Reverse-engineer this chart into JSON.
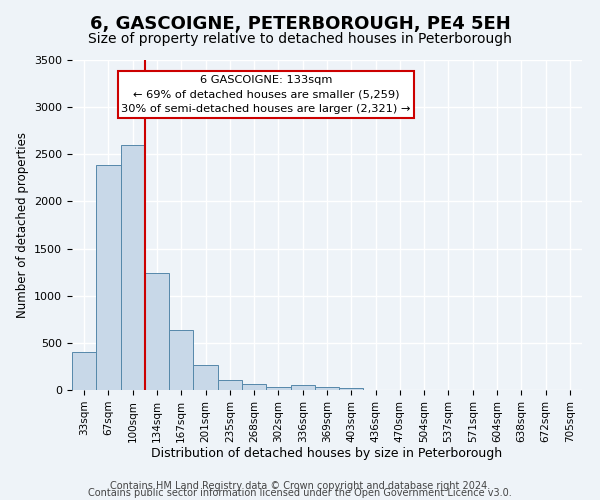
{
  "title": "6, GASCOIGNE, PETERBOROUGH, PE4 5EH",
  "subtitle": "Size of property relative to detached houses in Peterborough",
  "xlabel": "Distribution of detached houses by size in Peterborough",
  "ylabel": "Number of detached properties",
  "bar_labels": [
    "33sqm",
    "67sqm",
    "100sqm",
    "134sqm",
    "167sqm",
    "201sqm",
    "235sqm",
    "268sqm",
    "302sqm",
    "336sqm",
    "369sqm",
    "403sqm",
    "436sqm",
    "470sqm",
    "504sqm",
    "537sqm",
    "571sqm",
    "604sqm",
    "638sqm",
    "672sqm",
    "705sqm"
  ],
  "bar_values": [
    400,
    2390,
    2600,
    1240,
    640,
    260,
    110,
    60,
    35,
    50,
    30,
    20,
    0,
    0,
    0,
    0,
    0,
    0,
    0,
    0,
    0
  ],
  "bar_color": "#c8d8e8",
  "bar_edge_color": "#5588aa",
  "vline_x_index": 3,
  "vline_color": "#cc0000",
  "ylim": [
    0,
    3500
  ],
  "annotation_title": "6 GASCOIGNE: 133sqm",
  "annotation_line1": "← 69% of detached houses are smaller (5,259)",
  "annotation_line2": "30% of semi-detached houses are larger (2,321) →",
  "annotation_box_color": "#ffffff",
  "annotation_box_edge": "#cc0000",
  "footer_line1": "Contains HM Land Registry data © Crown copyright and database right 2024.",
  "footer_line2": "Contains public sector information licensed under the Open Government Licence v3.0.",
  "background_color": "#eef3f8",
  "plot_background": "#eef3f8",
  "grid_color": "#ffffff",
  "title_fontsize": 13,
  "subtitle_fontsize": 10,
  "footer_fontsize": 7
}
